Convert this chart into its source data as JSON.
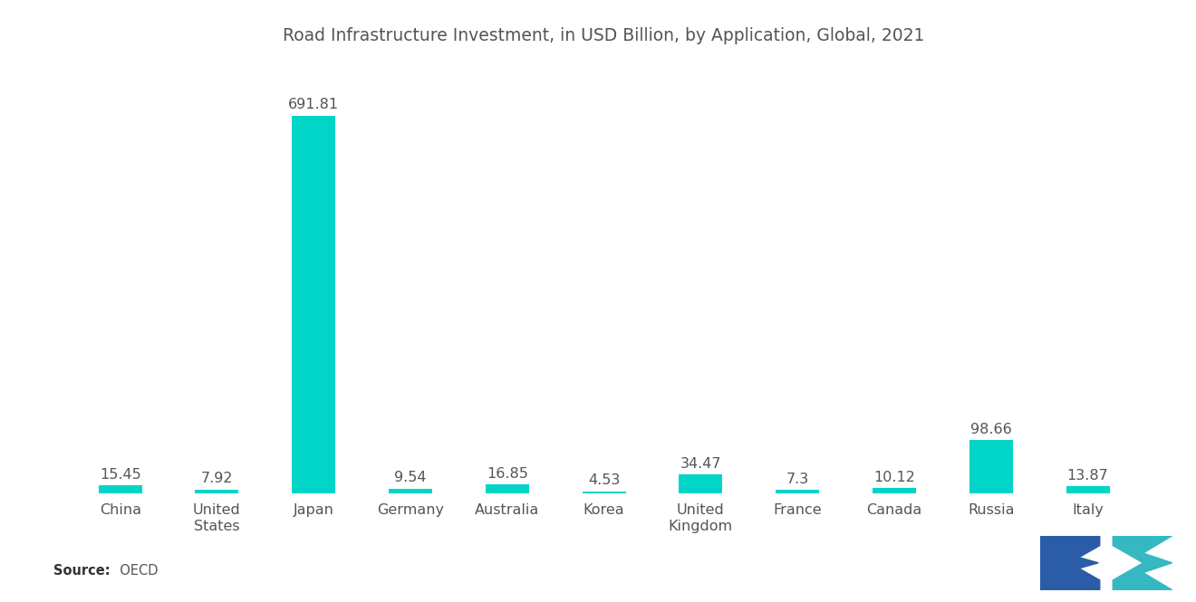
{
  "title": "Road Infrastructure Investment, in USD Billion, by Application, Global, 2021",
  "categories": [
    "China",
    "United\nStates",
    "Japan",
    "Germany",
    "Australia",
    "Korea",
    "United\nKingdom",
    "France",
    "Canada",
    "Russia",
    "Italy"
  ],
  "values": [
    15.45,
    7.92,
    691.81,
    9.54,
    16.85,
    4.53,
    34.47,
    7.3,
    10.12,
    98.66,
    13.87
  ],
  "bar_colors": [
    "#00D5C8",
    "#00D5C8",
    "#00D5C8",
    "#00D5C8",
    "#00D5C8",
    "#00D5C8",
    "#00D5C8",
    "#00D5C8",
    "#00D5C8",
    "#00D5C8",
    "#00D5C8"
  ],
  "background_color": "#ffffff",
  "title_fontsize": 13.5,
  "label_fontsize": 11.5,
  "tick_fontsize": 11.5,
  "source_bold": "Source:",
  "source_normal": "  OECD",
  "ylim": [
    0,
    760
  ],
  "bar_width": 0.45,
  "logo_left_color1": "#2B5BA8",
  "logo_left_color2": "#2B5BA8",
  "logo_right_color1": "#35B8C0",
  "logo_right_color2": "#35B8C0"
}
